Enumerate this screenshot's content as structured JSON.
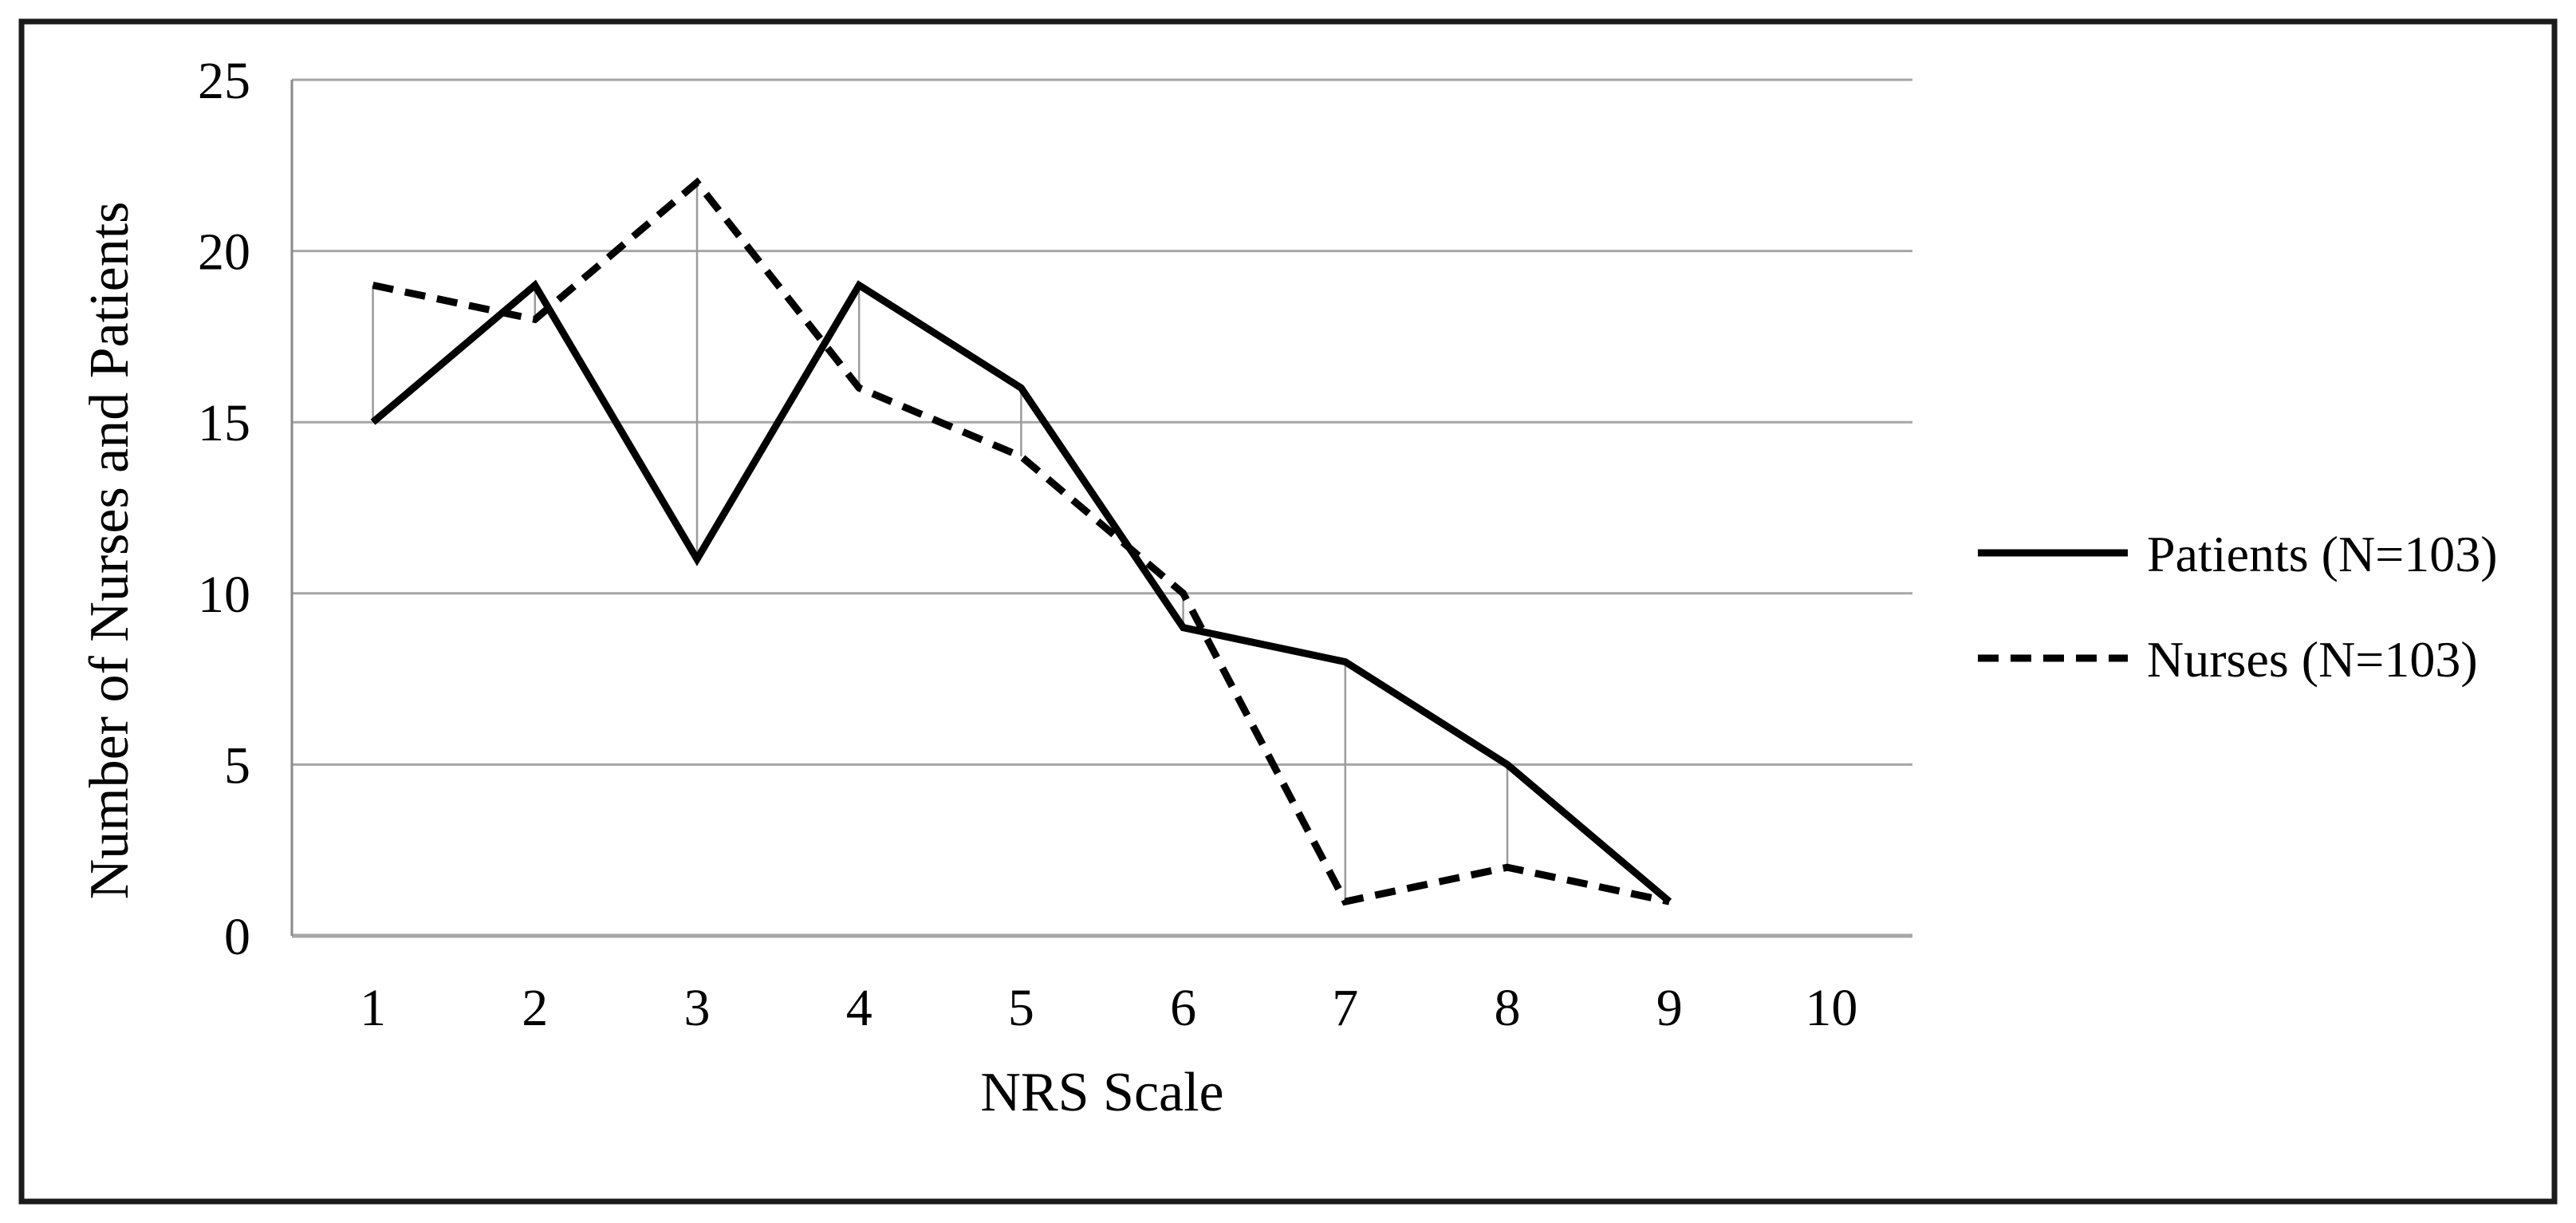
{
  "chart_data": {
    "type": "line",
    "title": "",
    "xlabel": "NRS Scale",
    "ylabel": "Number of Nurses and Patients",
    "x_categories": [
      "1",
      "2",
      "3",
      "4",
      "5",
      "6",
      "7",
      "8",
      "9",
      "10"
    ],
    "yticks": [
      0,
      5,
      10,
      15,
      20,
      25
    ],
    "ylim": [
      0,
      25
    ],
    "grid": "horizontal-only",
    "legend_position": "right-outside",
    "connectors": "thin vertical high-low lines join the two series at each x position",
    "series": [
      {
        "name": "Patients (N=103)",
        "style": "solid",
        "color": "#000000",
        "values": [
          15,
          19,
          11,
          19,
          16,
          9,
          8,
          5,
          1,
          null
        ]
      },
      {
        "name": "Nurses (N=103)",
        "style": "dashed",
        "color": "#000000",
        "values": [
          19,
          18,
          22,
          16,
          14,
          10,
          1,
          2,
          1,
          null
        ]
      }
    ],
    "colors": {
      "series_line": "#000000",
      "gridline": "#a6a6a6",
      "axis_line": "#898989",
      "highlow_line": "#9b9b9b",
      "border": "#1a1a1a",
      "background": "#ffffff",
      "text": "#000000"
    }
  }
}
